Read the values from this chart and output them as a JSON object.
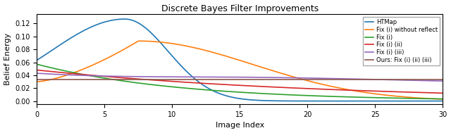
{
  "title": "Discrete Bayes Filter Improvements",
  "xlabel": "Image Index",
  "ylabel": "Belief Energy",
  "xlim": [
    0,
    30
  ],
  "ylim": [
    -0.005,
    0.135
  ],
  "legend_labels": [
    "HTMap",
    "Fix (i) without reflect",
    "Fix (i)",
    "Fix (i) (ii)",
    "Fix (i) (iii)",
    "Ours: Fix (i) (ii) (iii)"
  ],
  "colors": [
    "#1f77b4",
    "#ff7f0e",
    "#2ca02c",
    "#d62728",
    "#9467bd",
    "#8c564b"
  ],
  "figsize": [
    6.4,
    1.89
  ],
  "dpi": 100,
  "background": "#ffffff",
  "linewidth": 1.2
}
